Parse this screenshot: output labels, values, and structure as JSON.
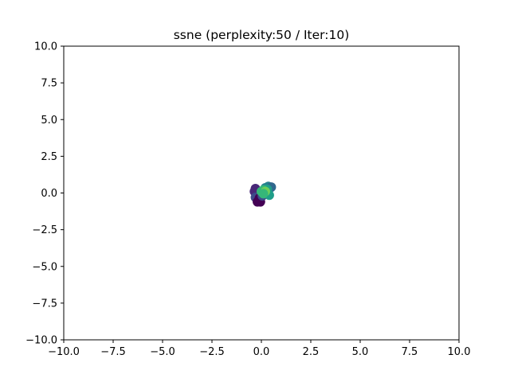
{
  "chart_data": {
    "type": "scatter",
    "title": "ssne (perplexity:50 / Iter:10)",
    "xlabel": "",
    "ylabel": "",
    "xlim": [
      -10,
      10
    ],
    "ylim": [
      -10,
      10
    ],
    "x_ticks": [
      -10,
      -7.5,
      -5,
      -2.5,
      0,
      2.5,
      5,
      7.5,
      10
    ],
    "y_ticks": [
      -10,
      -7.5,
      -5,
      -2.5,
      0,
      2.5,
      5,
      7.5,
      10
    ],
    "x_tick_labels": [
      "−10.0",
      "−7.5",
      "−5.0",
      "−2.5",
      "0.0",
      "2.5",
      "5.0",
      "7.5",
      "10.0"
    ],
    "y_tick_labels": [
      "−10.0",
      "−7.5",
      "−5.0",
      "−2.5",
      "0.0",
      "2.5",
      "5.0",
      "7.5",
      "10.0"
    ],
    "grid": false,
    "colormap": "viridis",
    "point_colors": [
      "#440154",
      "#482878",
      "#3e4989",
      "#31688e",
      "#26828e",
      "#1f9e89",
      "#35b779",
      "#6ece58",
      "#b5de2b"
    ],
    "points": [
      {
        "x": -0.3,
        "y": 0.3,
        "c": 1
      },
      {
        "x": -0.35,
        "y": 0.1,
        "c": 1
      },
      {
        "x": -0.2,
        "y": -0.05,
        "c": 1
      },
      {
        "x": -0.3,
        "y": -0.3,
        "c": 2
      },
      {
        "x": -0.1,
        "y": -0.35,
        "c": 0
      },
      {
        "x": -0.05,
        "y": -0.6,
        "c": 0
      },
      {
        "x": -0.2,
        "y": -0.6,
        "c": 0
      },
      {
        "x": -0.1,
        "y": -0.45,
        "c": 0
      },
      {
        "x": 0.05,
        "y": -0.2,
        "c": 2
      },
      {
        "x": 0.15,
        "y": 0.0,
        "c": 3
      },
      {
        "x": 0.2,
        "y": 0.35,
        "c": 4
      },
      {
        "x": 0.35,
        "y": 0.45,
        "c": 4
      },
      {
        "x": 0.45,
        "y": 0.35,
        "c": 4
      },
      {
        "x": 0.5,
        "y": 0.4,
        "c": 3
      },
      {
        "x": 0.3,
        "y": 0.25,
        "c": 5
      },
      {
        "x": 0.35,
        "y": -0.05,
        "c": 5
      },
      {
        "x": 0.4,
        "y": -0.15,
        "c": 5
      },
      {
        "x": 0.1,
        "y": 0.2,
        "c": 6
      },
      {
        "x": 0.0,
        "y": 0.1,
        "c": 6
      },
      {
        "x": 0.2,
        "y": 0.1,
        "c": 7
      },
      {
        "x": 0.1,
        "y": -0.05,
        "c": 6
      }
    ]
  }
}
